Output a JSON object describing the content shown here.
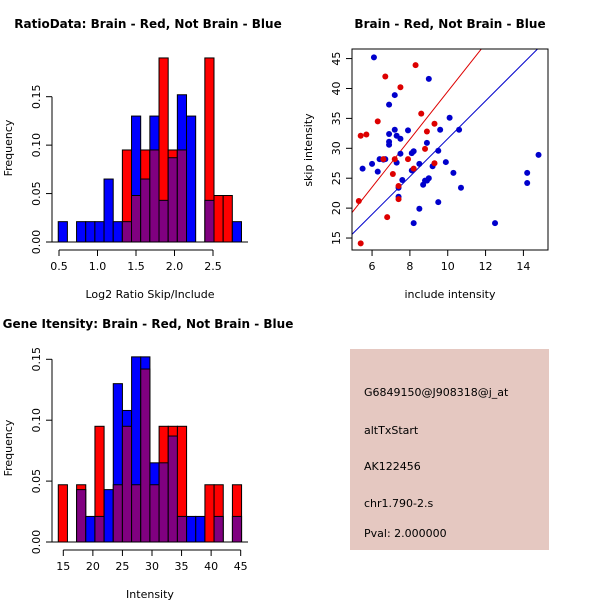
{
  "colors": {
    "red": "#ff0000",
    "blue": "#0000ff",
    "overlap": "#800080",
    "scatter_red": "#dd0000",
    "scatter_blue": "#0000cc",
    "info_bg": "#e5c8c1",
    "pval": "#a00000"
  },
  "chart_data": [
    {
      "type": "bar",
      "title": "RatioData: Brain - Red, Not Brain - Blue",
      "xlabel": "Log2 Ratio Skip/Include",
      "ylabel": "Frequency",
      "bin_start": 0.49,
      "bin_width": 0.119,
      "xticks": [
        "0.5",
        "1.0",
        "1.5",
        "2.0",
        "2.5"
      ],
      "yticks": [
        "0.00",
        "0.05",
        "0.10",
        "0.15"
      ],
      "ylim": [
        0,
        0.19
      ],
      "series": [
        {
          "name": "Brain",
          "color": "red",
          "values": [
            0,
            0,
            0,
            0,
            0,
            0,
            0,
            0.095,
            0.048,
            0.095,
            0.095,
            0.19,
            0.095,
            0.095,
            0,
            0,
            0.19,
            0.048,
            0.048,
            0
          ]
        },
        {
          "name": "Not Brain",
          "color": "blue",
          "values": [
            0.021,
            0,
            0.021,
            0.021,
            0.021,
            0.065,
            0.021,
            0.021,
            0.13,
            0.065,
            0.13,
            0.043,
            0.087,
            0.152,
            0.13,
            0,
            0.043,
            0,
            0,
            0.021
          ]
        }
      ]
    },
    {
      "type": "scatter",
      "title": "Brain - Red, Not Brain - Blue",
      "xlabel": "include intensity",
      "ylabel": "skip intensity",
      "xlim": [
        4.94,
        15.3
      ],
      "ylim": [
        13.0,
        46.6
      ],
      "xticks": [
        "6",
        "8",
        "10",
        "12",
        "14"
      ],
      "yticks": [
        "15",
        "20",
        "25",
        "30",
        "35",
        "40",
        "45"
      ],
      "series": [
        {
          "name": "Brain",
          "color": "red",
          "points": [
            [
              5.4,
              32.1
            ],
            [
              5.7,
              32.3
            ],
            [
              6.3,
              34.5
            ],
            [
              6.7,
              42.0
            ],
            [
              7.5,
              40.2
            ],
            [
              8.3,
              43.9
            ],
            [
              8.6,
              35.8
            ],
            [
              9.3,
              34.1
            ],
            [
              8.9,
              32.8
            ],
            [
              8.8,
              29.9
            ],
            [
              7.9,
              28.2
            ],
            [
              7.2,
              28.2
            ],
            [
              7.1,
              25.7
            ],
            [
              8.2,
              26.6
            ],
            [
              9.3,
              27.5
            ],
            [
              7.4,
              23.7
            ],
            [
              7.4,
              21.5
            ],
            [
              5.3,
              21.2
            ],
            [
              6.8,
              18.5
            ],
            [
              5.4,
              14.1
            ],
            [
              6.6,
              28.2
            ]
          ],
          "fit": {
            "slope": 4.0,
            "intercept": -0.5
          }
        },
        {
          "name": "Not Brain",
          "color": "blue",
          "points": [
            [
              6.1,
              45.2
            ],
            [
              6.9,
              37.3
            ],
            [
              7.2,
              38.9
            ],
            [
              9.0,
              41.6
            ],
            [
              10.1,
              35.1
            ],
            [
              9.6,
              33.1
            ],
            [
              10.6,
              33.1
            ],
            [
              6.9,
              32.4
            ],
            [
              7.2,
              33.1
            ],
            [
              7.3,
              32.1
            ],
            [
              7.5,
              31.6
            ],
            [
              6.9,
              31.1
            ],
            [
              6.9,
              30.6
            ],
            [
              7.9,
              33.0
            ],
            [
              8.9,
              30.9
            ],
            [
              7.5,
              29.1
            ],
            [
              8.2,
              29.5
            ],
            [
              8.1,
              29.2
            ],
            [
              9.5,
              29.6
            ],
            [
              5.5,
              26.6
            ],
            [
              6.0,
              27.4
            ],
            [
              6.4,
              28.2
            ],
            [
              6.6,
              28.1
            ],
            [
              6.7,
              28.2
            ],
            [
              7.3,
              27.6
            ],
            [
              6.3,
              26.1
            ],
            [
              8.1,
              26.3
            ],
            [
              8.5,
              27.4
            ],
            [
              7.6,
              24.7
            ],
            [
              8.8,
              24.6
            ],
            [
              9.0,
              25.0
            ],
            [
              8.9,
              24.6
            ],
            [
              8.7,
              23.9
            ],
            [
              9.2,
              27.0
            ],
            [
              9.9,
              27.7
            ],
            [
              10.3,
              25.9
            ],
            [
              10.7,
              23.4
            ],
            [
              7.4,
              23.4
            ],
            [
              7.4,
              21.9
            ],
            [
              9.5,
              21.0
            ],
            [
              8.5,
              19.9
            ],
            [
              8.2,
              17.5
            ],
            [
              12.5,
              17.5
            ],
            [
              14.8,
              28.9
            ],
            [
              14.2,
              25.9
            ],
            [
              14.2,
              24.2
            ]
          ],
          "fit": {
            "slope": 3.16,
            "intercept": 0.0
          }
        }
      ]
    },
    {
      "type": "bar",
      "title": "Gene Itensity: Brain - Red, Not Brain - Blue",
      "xlabel": "Intensity",
      "ylabel": "Frequency",
      "bin_start": 14.15,
      "bin_width": 1.55,
      "xticks": [
        "15",
        "20",
        "25",
        "30",
        "35",
        "40",
        "45"
      ],
      "yticks": [
        "0.00",
        "0.05",
        "0.10",
        "0.15"
      ],
      "ylim": [
        0,
        0.152
      ],
      "series": [
        {
          "name": "Brain",
          "color": "red",
          "values": [
            0.047,
            0,
            0.047,
            0,
            0.095,
            0,
            0.047,
            0.095,
            0.047,
            0.142,
            0.047,
            0.095,
            0.095,
            0.095,
            0,
            0,
            0.047,
            0.047,
            0,
            0.047
          ]
        },
        {
          "name": "Not Brain",
          "color": "blue",
          "values": [
            0,
            0,
            0.043,
            0.021,
            0.021,
            0.043,
            0.13,
            0.108,
            0.152,
            0.152,
            0.065,
            0.065,
            0.087,
            0.021,
            0.021,
            0.021,
            0,
            0.021,
            0,
            0.021
          ]
        }
      ]
    }
  ],
  "info": {
    "probe": "G6849150@J908318@j_at",
    "event_type": "altTxStart",
    "accession": "AK122456",
    "location": "chr1.790-2.s",
    "pval": "Pval: 2.000000"
  }
}
